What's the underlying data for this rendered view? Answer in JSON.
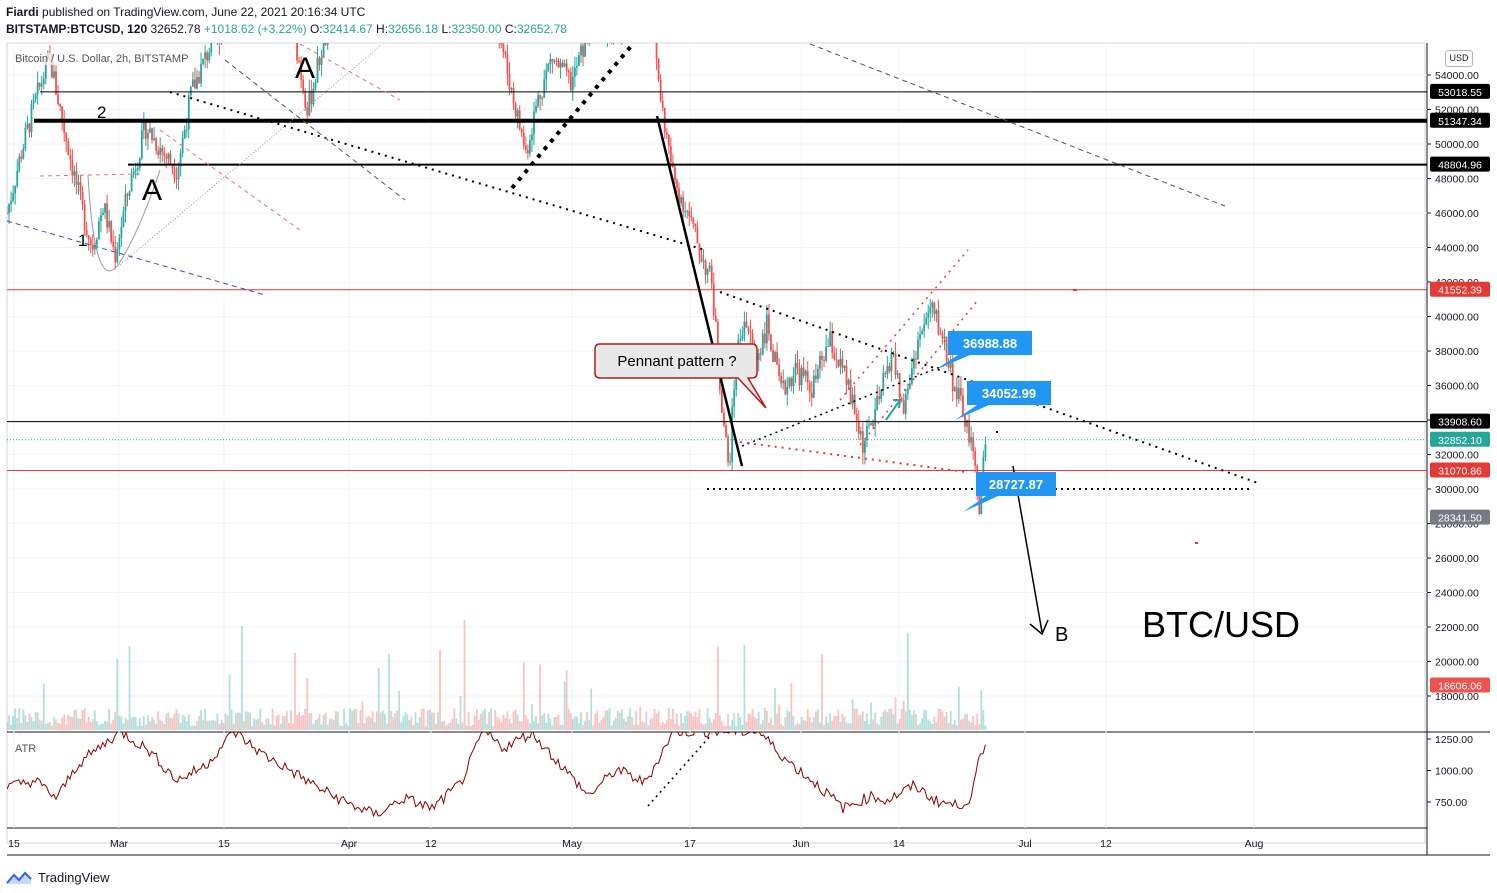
{
  "header": {
    "publisher": "Fiardi",
    "published_text": "published on TradingView.com, June 22, 2021 20:16:34 UTC",
    "symbol": "BITSTAMP:BTCUSD, 120",
    "last": "32652.78",
    "change": "+1018.62 (+3.22%)",
    "o_label": "O:",
    "o_value": "32414.67",
    "h_label": "H:",
    "h_value": "32656.18",
    "l_label": "L:",
    "l_value": "32350.00",
    "c_label": "C:",
    "c_value": "32652.78"
  },
  "subtitle": "Bitcoin / U.S. Dollar, 2h, BITSTAMP",
  "currency": "USD",
  "indicator_label": "ATR",
  "footer_brand": "TradingView",
  "annotations": {
    "pennant": "Pennant pattern ?",
    "big_title": "BTC/USD",
    "wave_b": "B",
    "wave_a1": "A",
    "wave_a2": "A",
    "count_1a": "1",
    "count_2": "2",
    "count_1b": "1"
  },
  "colors": {
    "up": "#26a69a",
    "down": "#ef5350",
    "label_blue": "#2196f3",
    "support_red": "#e53935"
  },
  "chart_data": {
    "type": "candlestick",
    "title": "BTC/USD",
    "x_ticks": [
      "15",
      "Mar",
      "15",
      "Apr",
      "12",
      "May",
      "17",
      "Jun",
      "14",
      "Jul",
      "12",
      "Aug"
    ],
    "price_axis": {
      "min": 17000,
      "max": 56000,
      "ticks": [
        18000,
        20000,
        22000,
        24000,
        26000,
        28000,
        30000,
        32000,
        34000,
        36000,
        38000,
        40000,
        42000,
        44000,
        46000,
        48000,
        50000,
        52000,
        54000
      ],
      "tick_labels": [
        "18000.00",
        "20000.00",
        "22000.00",
        "24000.00",
        "26000.00",
        "28000.00",
        "30000.00",
        "32000.00",
        "34000.00",
        "36000.00",
        "38000.00",
        "40000.00",
        "42000.00",
        "44000.00",
        "46000.00",
        "48000.00",
        "50000.00",
        "52000.00",
        "54000.00"
      ]
    },
    "atr_axis": {
      "min": 600,
      "max": 1300,
      "ticks": [
        750,
        1000,
        1250
      ],
      "tick_labels": [
        "750.00",
        "1000.00",
        "1250.00"
      ]
    },
    "horizontal_levels": [
      {
        "value": 53018.55,
        "label": "53018.55",
        "color": "#000000",
        "width": 1
      },
      {
        "value": 51347.34,
        "label": "51347.34",
        "color": "#000000",
        "width": 4
      },
      {
        "value": 48804.96,
        "label": "48804.96",
        "color": "#000000",
        "width": 2
      },
      {
        "value": 41552.39,
        "label": "41552.39",
        "color": "#e53935",
        "width": 1
      },
      {
        "value": 33908.6,
        "label": "33908.60",
        "color": "#000000",
        "width": 1
      },
      {
        "value": 31070.86,
        "label": "31070.86",
        "color": "#e53935",
        "width": 1
      }
    ],
    "price_badges": [
      {
        "value": 32852.1,
        "label": "32852.10",
        "color": "#26a69a"
      },
      {
        "value": 28341.5,
        "label": "28341.50",
        "color": "#787b86"
      },
      {
        "value": 18606.06,
        "label": "18606.06",
        "color": "#ef5350"
      }
    ],
    "callouts": [
      {
        "label": "36988.88",
        "value": 36988.88
      },
      {
        "label": "34052.99",
        "value": 34052.99
      },
      {
        "label": "28727.87",
        "value": 28727.87
      }
    ],
    "price_path": [
      {
        "t": 0.0,
        "v": 46000
      },
      {
        "t": 0.01,
        "v": 49500
      },
      {
        "t": 0.02,
        "v": 52500
      },
      {
        "t": 0.03,
        "v": 55000
      },
      {
        "t": 0.04,
        "v": 51000
      },
      {
        "t": 0.052,
        "v": 46500
      },
      {
        "t": 0.06,
        "v": 44000
      },
      {
        "t": 0.068,
        "v": 46500
      },
      {
        "t": 0.076,
        "v": 43500
      },
      {
        "t": 0.086,
        "v": 47500
      },
      {
        "t": 0.098,
        "v": 51000
      },
      {
        "t": 0.11,
        "v": 49500
      },
      {
        "t": 0.12,
        "v": 48500
      },
      {
        "t": 0.13,
        "v": 53000
      },
      {
        "t": 0.145,
        "v": 56000
      },
      {
        "t": 0.165,
        "v": 58000
      },
      {
        "t": 0.185,
        "v": 61000
      },
      {
        "t": 0.2,
        "v": 57500
      },
      {
        "t": 0.212,
        "v": 52000
      },
      {
        "t": 0.222,
        "v": 55500
      },
      {
        "t": 0.24,
        "v": 59500
      },
      {
        "t": 0.27,
        "v": 59000
      },
      {
        "t": 0.3,
        "v": 61000
      },
      {
        "t": 0.32,
        "v": 60000
      },
      {
        "t": 0.334,
        "v": 56000
      },
      {
        "t": 0.342,
        "v": 58500
      },
      {
        "t": 0.356,
        "v": 53000
      },
      {
        "t": 0.366,
        "v": 49500
      },
      {
        "t": 0.374,
        "v": 52500
      },
      {
        "t": 0.384,
        "v": 55000
      },
      {
        "t": 0.398,
        "v": 53500
      },
      {
        "t": 0.412,
        "v": 57000
      },
      {
        "t": 0.428,
        "v": 56500
      },
      {
        "t": 0.442,
        "v": 58000
      },
      {
        "t": 0.455,
        "v": 57000
      },
      {
        "t": 0.462,
        "v": 52000
      },
      {
        "t": 0.47,
        "v": 48000
      },
      {
        "t": 0.48,
        "v": 46000
      },
      {
        "t": 0.49,
        "v": 43500
      },
      {
        "t": 0.497,
        "v": 42000
      },
      {
        "t": 0.503,
        "v": 36000
      },
      {
        "t": 0.509,
        "v": 31000
      },
      {
        "t": 0.514,
        "v": 37500
      },
      {
        "t": 0.52,
        "v": 40000
      },
      {
        "t": 0.528,
        "v": 37500
      },
      {
        "t": 0.536,
        "v": 39500
      },
      {
        "t": 0.546,
        "v": 35500
      },
      {
        "t": 0.556,
        "v": 37000
      },
      {
        "t": 0.568,
        "v": 35800
      },
      {
        "t": 0.58,
        "v": 38600
      },
      {
        "t": 0.592,
        "v": 36200
      },
      {
        "t": 0.604,
        "v": 32500
      },
      {
        "t": 0.614,
        "v": 34800
      },
      {
        "t": 0.624,
        "v": 38000
      },
      {
        "t": 0.632,
        "v": 34500
      },
      {
        "t": 0.642,
        "v": 38500
      },
      {
        "t": 0.652,
        "v": 40500
      },
      {
        "t": 0.66,
        "v": 38800
      },
      {
        "t": 0.668,
        "v": 36000
      },
      {
        "t": 0.676,
        "v": 34000
      },
      {
        "t": 0.682,
        "v": 31500
      },
      {
        "t": 0.686,
        "v": 29000
      },
      {
        "t": 0.69,
        "v": 32850
      }
    ],
    "atr_path": [
      {
        "t": 0.0,
        "v": 870
      },
      {
        "t": 0.02,
        "v": 920
      },
      {
        "t": 0.035,
        "v": 780
      },
      {
        "t": 0.05,
        "v": 1050
      },
      {
        "t": 0.08,
        "v": 1310
      },
      {
        "t": 0.1,
        "v": 1160
      },
      {
        "t": 0.12,
        "v": 920
      },
      {
        "t": 0.14,
        "v": 1040
      },
      {
        "t": 0.16,
        "v": 1310
      },
      {
        "t": 0.18,
        "v": 1130
      },
      {
        "t": 0.2,
        "v": 1000
      },
      {
        "t": 0.22,
        "v": 860
      },
      {
        "t": 0.24,
        "v": 740
      },
      {
        "t": 0.26,
        "v": 650
      },
      {
        "t": 0.28,
        "v": 780
      },
      {
        "t": 0.3,
        "v": 700
      },
      {
        "t": 0.32,
        "v": 900
      },
      {
        "t": 0.336,
        "v": 1310
      },
      {
        "t": 0.35,
        "v": 1180
      },
      {
        "t": 0.37,
        "v": 1300
      },
      {
        "t": 0.39,
        "v": 1050
      },
      {
        "t": 0.41,
        "v": 800
      },
      {
        "t": 0.43,
        "v": 1010
      },
      {
        "t": 0.45,
        "v": 900
      },
      {
        "t": 0.47,
        "v": 1310
      },
      {
        "t": 0.5,
        "v": 1310
      },
      {
        "t": 0.53,
        "v": 1310
      },
      {
        "t": 0.55,
        "v": 1080
      },
      {
        "t": 0.57,
        "v": 900
      },
      {
        "t": 0.59,
        "v": 700
      },
      {
        "t": 0.61,
        "v": 800
      },
      {
        "t": 0.62,
        "v": 760
      },
      {
        "t": 0.64,
        "v": 880
      },
      {
        "t": 0.655,
        "v": 760
      },
      {
        "t": 0.67,
        "v": 720
      },
      {
        "t": 0.68,
        "v": 780
      },
      {
        "t": 0.686,
        "v": 1100
      },
      {
        "t": 0.69,
        "v": 1180
      }
    ],
    "x_range_fraction": [
      0,
      1
    ]
  }
}
